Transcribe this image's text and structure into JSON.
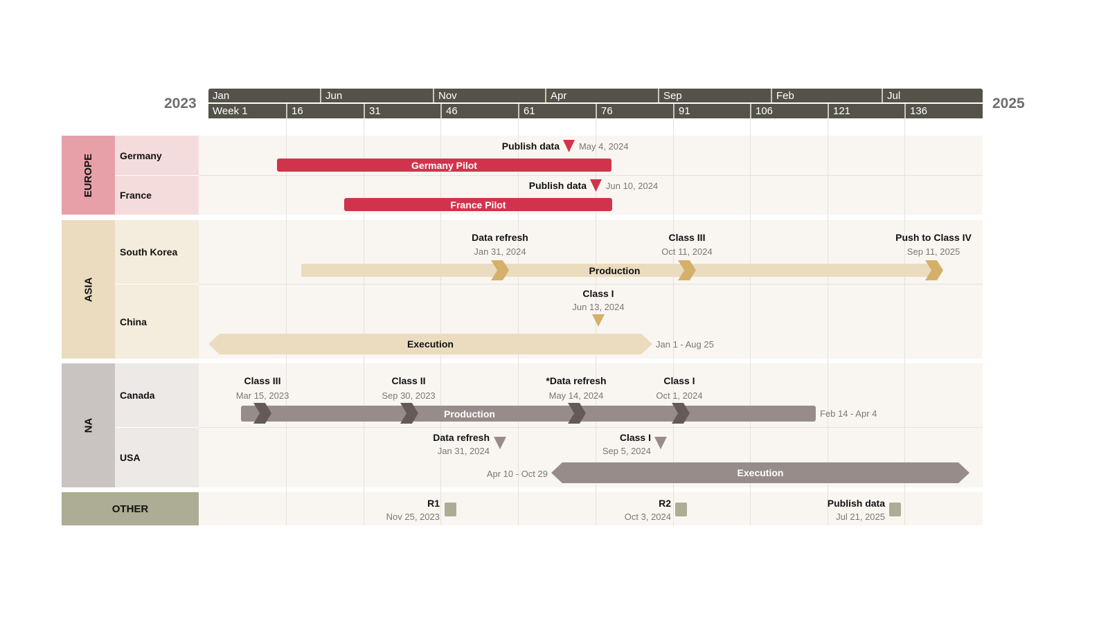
{
  "years": {
    "start": "2023",
    "end": "2025"
  },
  "months": [
    "Jan",
    "Jun",
    "Nov",
    "Apr",
    "Sep",
    "Feb",
    "Jul"
  ],
  "weeks": [
    "Week 1",
    "16",
    "31",
    "46",
    "61",
    "76",
    "91",
    "106",
    "121",
    "136"
  ],
  "colors": {
    "header": "#545249",
    "europe": "#d2334c",
    "asia": "#ebdcc0",
    "asia_marker": "#d4b06a",
    "na": "#978c8a",
    "na_marker": "#665a57",
    "other": "#adac94"
  },
  "groups": {
    "europe": {
      "label": "EUROPE",
      "rows": {
        "germany": {
          "label": "Germany",
          "milestone": {
            "title": "Publish data",
            "date": "May 4, 2024"
          },
          "bar": "Germany Pilot"
        },
        "france": {
          "label": "France",
          "milestone": {
            "title": "Publish data",
            "date": "Jun 10, 2024"
          },
          "bar": "France Pilot"
        }
      }
    },
    "asia": {
      "label": "ASIA",
      "rows": {
        "south_korea": {
          "label": "South Korea",
          "bar": "Production",
          "milestones": [
            {
              "title": "Data refresh",
              "date": "Jan 31, 2024"
            },
            {
              "title": "Class III",
              "date": "Oct 11, 2024"
            },
            {
              "title": "Push to Class IV",
              "date": "Sep 11, 2025"
            }
          ]
        },
        "china": {
          "label": "China",
          "milestone": {
            "title": "Class I",
            "date": "Jun 13, 2024"
          },
          "bar": "Execution",
          "range": "Jan 1 - Aug 25"
        }
      }
    },
    "na": {
      "label": "NA",
      "rows": {
        "canada": {
          "label": "Canada",
          "bar": "Production",
          "range": "Feb 14 - Apr 4",
          "milestones": [
            {
              "title": "Class III",
              "date": "Mar 15, 2023"
            },
            {
              "title": "Class II",
              "date": "Sep 30, 2023"
            },
            {
              "title": "*Data refresh",
              "date": "May 14, 2024"
            },
            {
              "title": "Class I",
              "date": "Oct 1, 2024"
            }
          ]
        },
        "usa": {
          "label": "USA",
          "bar": "Execution",
          "range": "Apr 10 - Oct 29",
          "milestones": [
            {
              "title": "Data refresh",
              "date": "Jan 31, 2024"
            },
            {
              "title": "Class I",
              "date": "Sep 5, 2024"
            }
          ]
        }
      }
    },
    "other": {
      "label": "OTHER",
      "milestones": [
        {
          "title": "R1",
          "date": "Nov 25, 2023"
        },
        {
          "title": "R2",
          "date": "Oct 3, 2024"
        },
        {
          "title": "Publish data",
          "date": "Jul 21, 2025"
        }
      ]
    }
  }
}
